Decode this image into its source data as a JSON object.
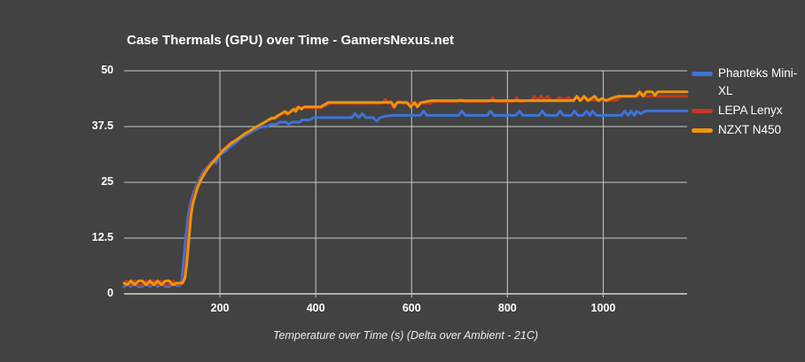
{
  "title": "Case Thermals (GPU) over Time - GamersNexus.net",
  "colors": {
    "background": "#424242",
    "gridline": "#c9c9c9",
    "axis_line": "#d4d4d4",
    "title_text": "#ffffff",
    "tick_text": "#ffffff",
    "axis_title_text": "#ebebeb"
  },
  "chart_data": {
    "type": "line",
    "title": "Case Thermals (GPU) over Time - GamersNexus.net",
    "xlabel": "Temperature over Time (s) (Delta over Ambient - 21C)",
    "ylabel": "",
    "xlim": [
      0,
      1175
    ],
    "ylim": [
      0,
      50
    ],
    "x_ticks": [
      200,
      400,
      600,
      800,
      1000
    ],
    "y_ticks": [
      0,
      12.5,
      25,
      37.5,
      50
    ],
    "grid": true,
    "legend_position": "right",
    "series": [
      {
        "name": "Phanteks Mini-XL",
        "color": "#3f72d8",
        "points": [
          [
            0,
            1.6
          ],
          [
            6,
            2.4
          ],
          [
            14,
            1.6
          ],
          [
            22,
            2.4
          ],
          [
            30,
            1.6
          ],
          [
            38,
            1.6
          ],
          [
            46,
            2.4
          ],
          [
            54,
            1.6
          ],
          [
            62,
            2.4
          ],
          [
            70,
            1.6
          ],
          [
            78,
            2.4
          ],
          [
            86,
            1.6
          ],
          [
            94,
            1.6
          ],
          [
            102,
            2.4
          ],
          [
            110,
            1.8
          ],
          [
            116,
            1.8
          ],
          [
            120,
            3
          ],
          [
            124,
            7
          ],
          [
            128,
            12
          ],
          [
            132,
            16
          ],
          [
            136,
            19
          ],
          [
            140,
            21
          ],
          [
            146,
            23
          ],
          [
            152,
            24.5
          ],
          [
            158,
            26
          ],
          [
            166,
            27.5
          ],
          [
            174,
            28.5
          ],
          [
            182,
            29.5
          ],
          [
            188,
            30
          ],
          [
            192,
            29.3
          ],
          [
            196,
            30.5
          ],
          [
            204,
            31.5
          ],
          [
            212,
            32
          ],
          [
            218,
            32.8
          ],
          [
            226,
            33.3
          ],
          [
            234,
            34
          ],
          [
            242,
            34.8
          ],
          [
            250,
            35.3
          ],
          [
            258,
            35.8
          ],
          [
            266,
            36.3
          ],
          [
            274,
            36.8
          ],
          [
            282,
            37.2
          ],
          [
            290,
            37.5
          ],
          [
            298,
            37.5
          ],
          [
            306,
            38
          ],
          [
            318,
            38
          ],
          [
            324,
            38.5
          ],
          [
            338,
            38.5
          ],
          [
            344,
            38
          ],
          [
            350,
            38.5
          ],
          [
            366,
            38.5
          ],
          [
            372,
            39
          ],
          [
            388,
            39
          ],
          [
            395,
            39.5
          ],
          [
            475,
            39.5
          ],
          [
            482,
            40.4
          ],
          [
            490,
            39.5
          ],
          [
            497,
            40.4
          ],
          [
            505,
            39.5
          ],
          [
            520,
            39.5
          ],
          [
            527,
            38.7
          ],
          [
            534,
            39.5
          ],
          [
            545,
            39.8
          ],
          [
            560,
            40
          ],
          [
            618,
            40
          ],
          [
            625,
            41
          ],
          [
            632,
            40
          ],
          [
            698,
            40
          ],
          [
            705,
            41
          ],
          [
            712,
            40
          ],
          [
            758,
            40
          ],
          [
            765,
            41
          ],
          [
            772,
            40
          ],
          [
            818,
            40
          ],
          [
            825,
            41
          ],
          [
            832,
            40
          ],
          [
            866,
            40
          ],
          [
            873,
            41
          ],
          [
            880,
            40
          ],
          [
            903,
            40
          ],
          [
            910,
            41
          ],
          [
            917,
            40
          ],
          [
            933,
            40
          ],
          [
            940,
            41
          ],
          [
            947,
            40
          ],
          [
            958,
            40
          ],
          [
            965,
            41
          ],
          [
            972,
            40
          ],
          [
            978,
            41
          ],
          [
            985,
            40
          ],
          [
            1038,
            40
          ],
          [
            1045,
            41
          ],
          [
            1052,
            40
          ],
          [
            1058,
            41
          ],
          [
            1065,
            40
          ],
          [
            1070,
            41
          ],
          [
            1078,
            40.4
          ],
          [
            1088,
            41
          ],
          [
            1175,
            41
          ]
        ]
      },
      {
        "name": "LEPA Lenyx",
        "color": "#c43a1c",
        "points": [
          [
            0,
            2.4
          ],
          [
            6,
            2.9
          ],
          [
            14,
            2
          ],
          [
            22,
            2.9
          ],
          [
            30,
            2
          ],
          [
            38,
            2
          ],
          [
            46,
            2.9
          ],
          [
            54,
            2
          ],
          [
            62,
            2.9
          ],
          [
            70,
            2
          ],
          [
            78,
            2.9
          ],
          [
            86,
            2
          ],
          [
            94,
            2
          ],
          [
            102,
            2.9
          ],
          [
            110,
            2.2
          ],
          [
            120,
            2.2
          ],
          [
            125,
            3.5
          ],
          [
            129,
            7
          ],
          [
            133,
            12
          ],
          [
            137,
            17
          ],
          [
            141,
            20
          ],
          [
            146,
            22
          ],
          [
            152,
            24
          ],
          [
            158,
            25.5
          ],
          [
            166,
            27
          ],
          [
            174,
            28.3
          ],
          [
            182,
            29.3
          ],
          [
            190,
            30.3
          ],
          [
            198,
            31.3
          ],
          [
            206,
            32.3
          ],
          [
            214,
            33
          ],
          [
            222,
            33.8
          ],
          [
            230,
            34.3
          ],
          [
            240,
            35
          ],
          [
            250,
            35.8
          ],
          [
            260,
            36.3
          ],
          [
            270,
            37
          ],
          [
            280,
            37.6
          ],
          [
            290,
            38.2
          ],
          [
            298,
            38.7
          ],
          [
            306,
            39.2
          ],
          [
            314,
            39.2
          ],
          [
            320,
            39.7
          ],
          [
            326,
            40.2
          ],
          [
            334,
            40.7
          ],
          [
            340,
            40.2
          ],
          [
            346,
            40.7
          ],
          [
            352,
            41.2
          ],
          [
            360,
            41.7
          ],
          [
            412,
            41.7
          ],
          [
            420,
            42.2
          ],
          [
            428,
            42.7
          ],
          [
            538,
            42.7
          ],
          [
            545,
            43.6
          ],
          [
            551,
            42.7
          ],
          [
            556,
            43.2
          ],
          [
            562,
            41.7
          ],
          [
            568,
            42.7
          ],
          [
            574,
            43.2
          ],
          [
            580,
            42.7
          ],
          [
            638,
            42.7
          ],
          [
            645,
            43.1
          ],
          [
            695,
            43.1
          ],
          [
            702,
            43.6
          ],
          [
            709,
            43.1
          ],
          [
            763,
            43.1
          ],
          [
            769,
            44
          ],
          [
            775,
            43.1
          ],
          [
            813,
            43.1
          ],
          [
            819,
            44
          ],
          [
            825,
            43.1
          ],
          [
            850,
            43.4
          ],
          [
            856,
            44.3
          ],
          [
            862,
            43.4
          ],
          [
            870,
            44.3
          ],
          [
            876,
            43.4
          ],
          [
            884,
            44.3
          ],
          [
            890,
            43.4
          ],
          [
            902,
            43.4
          ],
          [
            909,
            44
          ],
          [
            916,
            43.4
          ],
          [
            928,
            44
          ],
          [
            935,
            43.4
          ],
          [
            945,
            44
          ],
          [
            952,
            43.4
          ],
          [
            963,
            44
          ],
          [
            970,
            43.4
          ],
          [
            1028,
            43.4
          ],
          [
            1038,
            44.3
          ],
          [
            1072,
            44.3
          ],
          [
            1080,
            45
          ],
          [
            1086,
            44.3
          ],
          [
            1175,
            44.3
          ]
        ]
      },
      {
        "name": "NZXT N450",
        "color": "#ef930d",
        "points": [
          [
            0,
            2.4
          ],
          [
            6,
            2
          ],
          [
            14,
            2.9
          ],
          [
            22,
            2
          ],
          [
            30,
            2.9
          ],
          [
            38,
            2.9
          ],
          [
            46,
            2
          ],
          [
            54,
            2.9
          ],
          [
            62,
            2
          ],
          [
            70,
            2.9
          ],
          [
            78,
            2
          ],
          [
            86,
            2.9
          ],
          [
            94,
            2.9
          ],
          [
            102,
            2
          ],
          [
            110,
            2.4
          ],
          [
            122,
            2.4
          ],
          [
            127,
            3.5
          ],
          [
            131,
            7
          ],
          [
            135,
            12
          ],
          [
            139,
            17
          ],
          [
            143,
            20
          ],
          [
            148,
            22
          ],
          [
            154,
            24
          ],
          [
            160,
            25.5
          ],
          [
            168,
            27
          ],
          [
            176,
            28.3
          ],
          [
            184,
            29.3
          ],
          [
            192,
            30.3
          ],
          [
            200,
            31.3
          ],
          [
            208,
            32.3
          ],
          [
            216,
            33
          ],
          [
            224,
            33.8
          ],
          [
            232,
            34.3
          ],
          [
            242,
            35.1
          ],
          [
            252,
            35.9
          ],
          [
            262,
            36.5
          ],
          [
            272,
            37.2
          ],
          [
            282,
            37.8
          ],
          [
            292,
            38.4
          ],
          [
            300,
            38.9
          ],
          [
            308,
            39.4
          ],
          [
            314,
            39.4
          ],
          [
            320,
            39.9
          ],
          [
            328,
            40.4
          ],
          [
            336,
            40.9
          ],
          [
            342,
            40.4
          ],
          [
            348,
            40.9
          ],
          [
            354,
            41.4
          ],
          [
            358,
            40.9
          ],
          [
            364,
            41.9
          ],
          [
            370,
            41.4
          ],
          [
            376,
            41.9
          ],
          [
            410,
            41.9
          ],
          [
            418,
            42.4
          ],
          [
            426,
            42.9
          ],
          [
            558,
            42.9
          ],
          [
            564,
            41.9
          ],
          [
            570,
            42.9
          ],
          [
            590,
            42.9
          ],
          [
            598,
            41.9
          ],
          [
            606,
            42.9
          ],
          [
            612,
            41.9
          ],
          [
            620,
            42.9
          ],
          [
            640,
            43.3
          ],
          [
            938,
            43.3
          ],
          [
            945,
            44.3
          ],
          [
            952,
            43.3
          ],
          [
            960,
            44.3
          ],
          [
            968,
            43.3
          ],
          [
            982,
            44.3
          ],
          [
            990,
            43.3
          ],
          [
            998,
            43.8
          ],
          [
            1006,
            43.3
          ],
          [
            1016,
            43.8
          ],
          [
            1032,
            44.3
          ],
          [
            1068,
            44.3
          ],
          [
            1076,
            45.3
          ],
          [
            1083,
            44.3
          ],
          [
            1090,
            45.3
          ],
          [
            1102,
            45.3
          ],
          [
            1108,
            44.5
          ],
          [
            1114,
            45.3
          ],
          [
            1175,
            45.3
          ]
        ]
      }
    ]
  }
}
